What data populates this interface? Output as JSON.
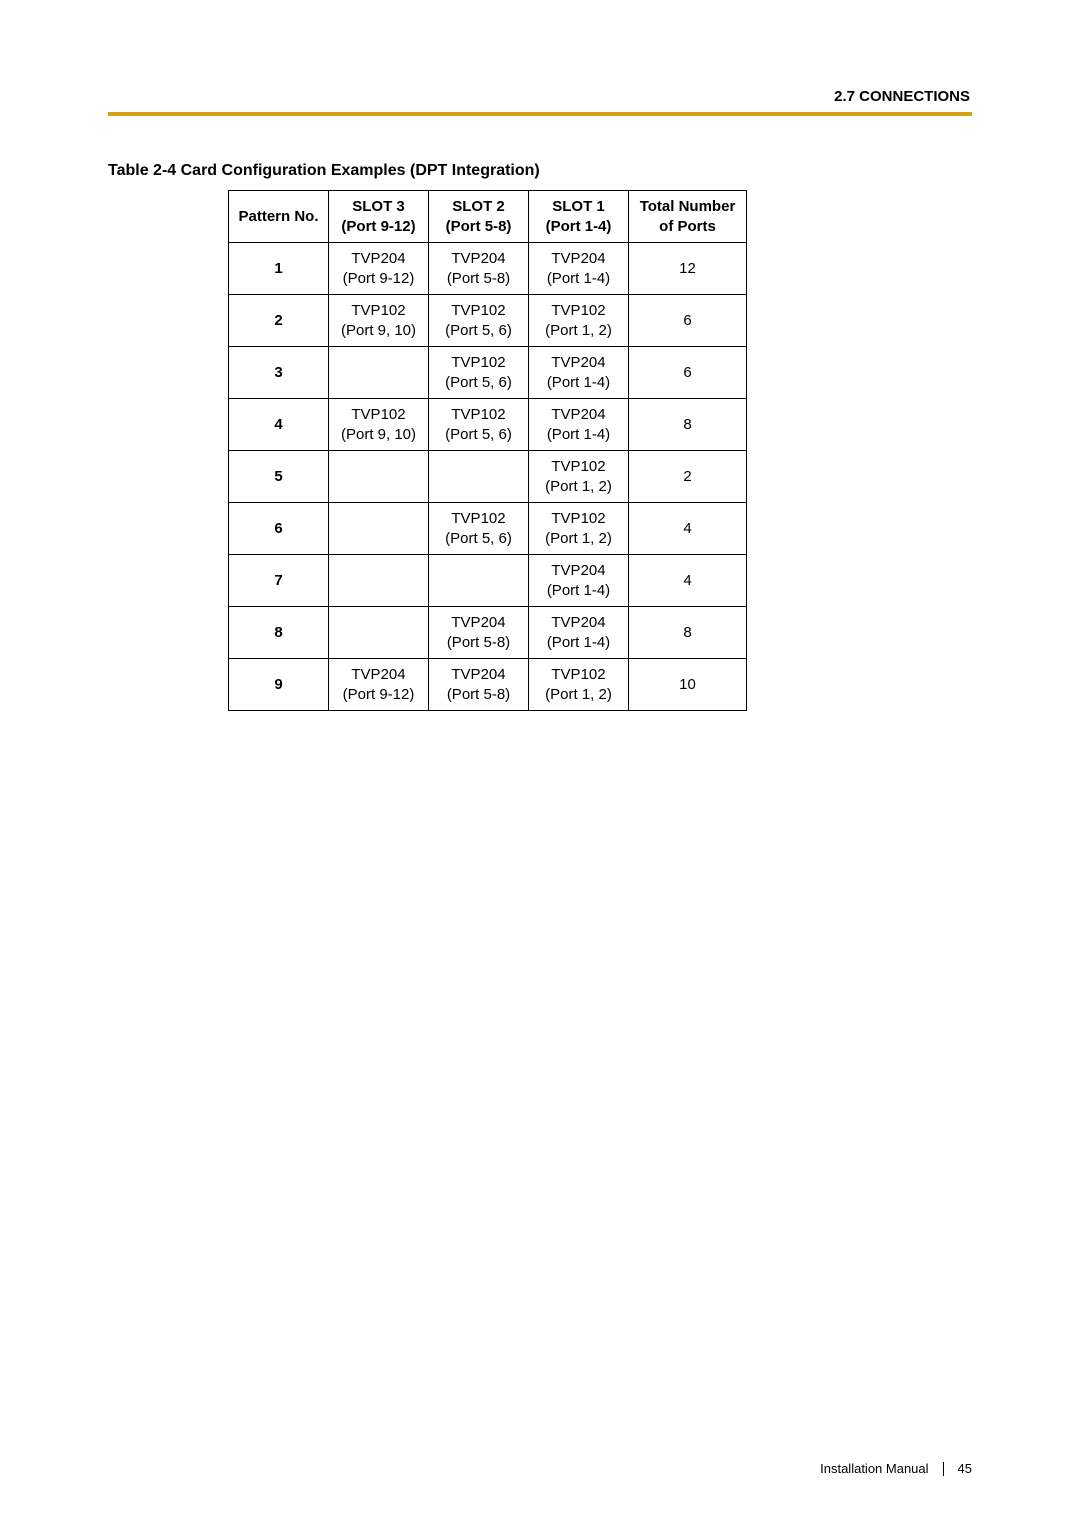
{
  "header": {
    "section": "2.7 CONNECTIONS"
  },
  "table": {
    "caption": "Table 2-4 Card Configuration Examples (DPT Integration)",
    "columns": [
      {
        "line1": "Pattern No.",
        "line2": ""
      },
      {
        "line1": "SLOT 3",
        "line2": "(Port 9-12)"
      },
      {
        "line1": "SLOT 2",
        "line2": "(Port 5-8)"
      },
      {
        "line1": "SLOT 1",
        "line2": "(Port 1-4)"
      },
      {
        "line1": "Total Number",
        "line2": "of Ports"
      }
    ],
    "rows": [
      {
        "pattern": "1",
        "slot3": {
          "line1": "TVP204",
          "line2": "(Port 9-12)"
        },
        "slot2": {
          "line1": "TVP204",
          "line2": "(Port 5-8)"
        },
        "slot1": {
          "line1": "TVP204",
          "line2": "(Port 1-4)"
        },
        "total": "12"
      },
      {
        "pattern": "2",
        "slot3": {
          "line1": "TVP102",
          "line2": "(Port 9, 10)"
        },
        "slot2": {
          "line1": "TVP102",
          "line2": "(Port 5, 6)"
        },
        "slot1": {
          "line1": "TVP102",
          "line2": "(Port 1, 2)"
        },
        "total": "6"
      },
      {
        "pattern": "3",
        "slot3": {
          "line1": "",
          "line2": ""
        },
        "slot2": {
          "line1": "TVP102",
          "line2": "(Port 5, 6)"
        },
        "slot1": {
          "line1": "TVP204",
          "line2": "(Port 1-4)"
        },
        "total": "6"
      },
      {
        "pattern": "4",
        "slot3": {
          "line1": "TVP102",
          "line2": "(Port 9, 10)"
        },
        "slot2": {
          "line1": "TVP102",
          "line2": "(Port 5, 6)"
        },
        "slot1": {
          "line1": "TVP204",
          "line2": "(Port 1-4)"
        },
        "total": "8"
      },
      {
        "pattern": "5",
        "slot3": {
          "line1": "",
          "line2": ""
        },
        "slot2": {
          "line1": "",
          "line2": ""
        },
        "slot1": {
          "line1": "TVP102",
          "line2": "(Port 1, 2)"
        },
        "total": "2"
      },
      {
        "pattern": "6",
        "slot3": {
          "line1": "",
          "line2": ""
        },
        "slot2": {
          "line1": "TVP102",
          "line2": "(Port 5, 6)"
        },
        "slot1": {
          "line1": "TVP102",
          "line2": "(Port 1, 2)"
        },
        "total": "4"
      },
      {
        "pattern": "7",
        "slot3": {
          "line1": "",
          "line2": ""
        },
        "slot2": {
          "line1": "",
          "line2": ""
        },
        "slot1": {
          "line1": "TVP204",
          "line2": "(Port 1-4)"
        },
        "total": "4"
      },
      {
        "pattern": "8",
        "slot3": {
          "line1": "",
          "line2": ""
        },
        "slot2": {
          "line1": "TVP204",
          "line2": "(Port 5-8)"
        },
        "slot1": {
          "line1": "TVP204",
          "line2": "(Port 1-4)"
        },
        "total": "8"
      },
      {
        "pattern": "9",
        "slot3": {
          "line1": "TVP204",
          "line2": "(Port 9-12)"
        },
        "slot2": {
          "line1": "TVP204",
          "line2": "(Port 5-8)"
        },
        "slot1": {
          "line1": "TVP102",
          "line2": "(Port 1, 2)"
        },
        "total": "10"
      }
    ]
  },
  "footer": {
    "manual": "Installation Manual",
    "page": "45"
  }
}
